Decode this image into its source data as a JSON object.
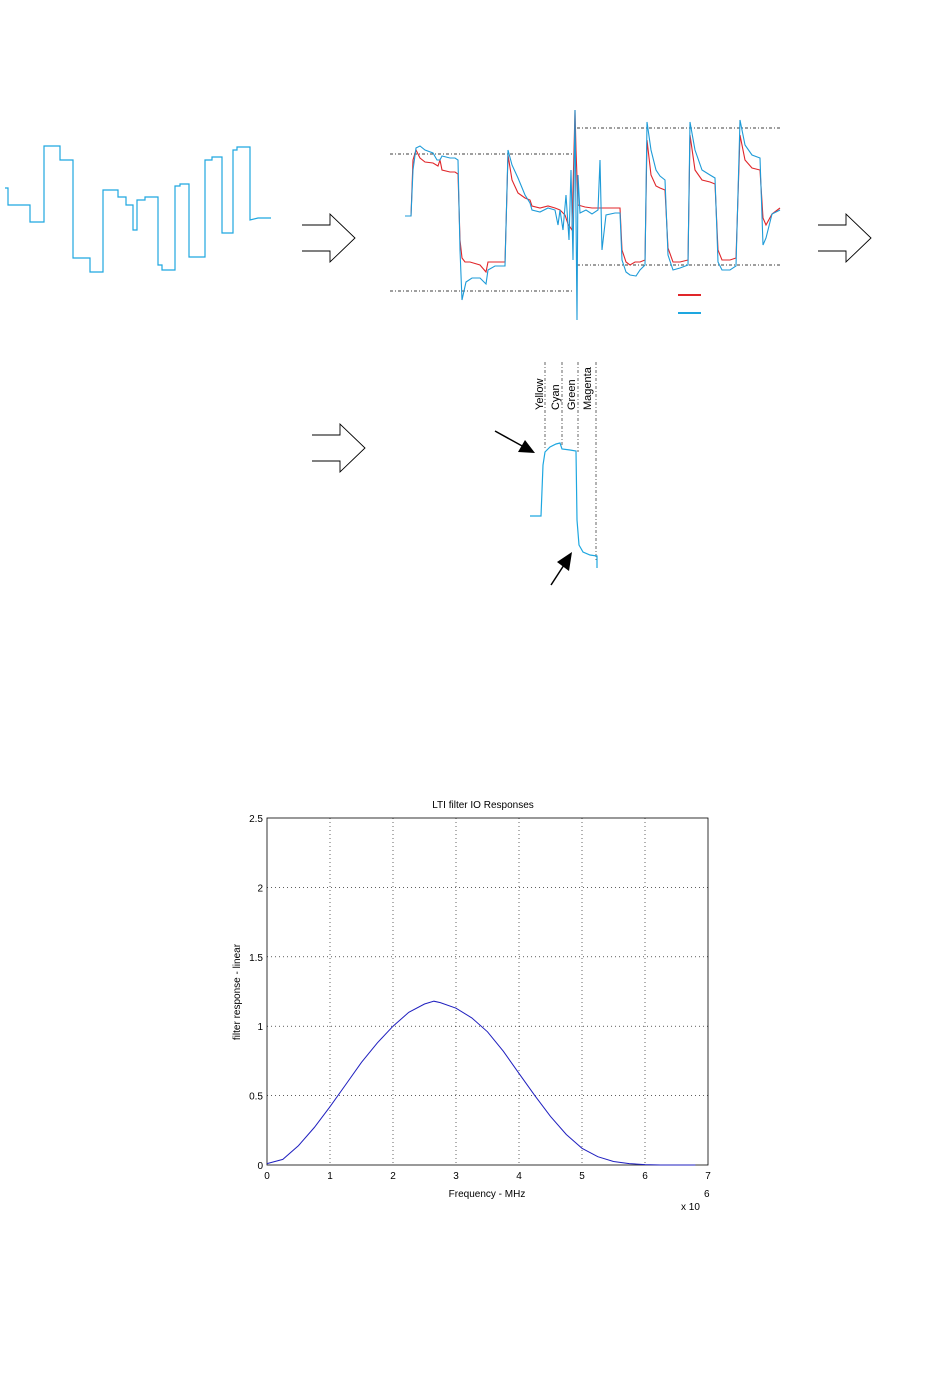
{
  "colors": {
    "cyan_trace": "#1ea7e0",
    "red_trace": "#e0262a",
    "blue_trace": "#3a78c8",
    "curve": "#1f1fbf"
  },
  "diagram": {
    "arrows": [
      "right-arrow",
      "right-arrow",
      "right-arrow"
    ],
    "bar_labels": [
      "Yellow",
      "Cyan",
      "Green",
      "Magenta"
    ],
    "pointer_arrows": [
      "pointer-arrow-top",
      "pointer-arrow-bottom"
    ]
  },
  "chart_data": {
    "type": "line",
    "title": "LTI filter IO Responses",
    "xlabel": "Frequency - MHz",
    "ylabel": "filter response - linear",
    "x_multiplier": "x 10",
    "x_exponent": "6",
    "xlim": [
      0,
      7
    ],
    "ylim": [
      0,
      2.5
    ],
    "xticks": [
      "0",
      "1",
      "2",
      "3",
      "4",
      "5",
      "6",
      "7"
    ],
    "yticks": [
      "0",
      "0.5",
      "1",
      "1.5",
      "2",
      "2.5"
    ],
    "grid": true,
    "series": [
      {
        "x": [
          0,
          0.25,
          0.5,
          0.75,
          1.0,
          1.25,
          1.5,
          1.75,
          2.0,
          2.25,
          2.5,
          2.65,
          2.75,
          3.0,
          3.25,
          3.5,
          3.75,
          4.0,
          4.25,
          4.5,
          4.75,
          5.0,
          5.25,
          5.5,
          5.75,
          6.0,
          6.25,
          6.5,
          6.8
        ],
        "y": [
          0.01,
          0.04,
          0.14,
          0.27,
          0.42,
          0.58,
          0.74,
          0.88,
          1.0,
          1.1,
          1.16,
          1.18,
          1.17,
          1.13,
          1.06,
          0.96,
          0.82,
          0.66,
          0.5,
          0.35,
          0.22,
          0.12,
          0.06,
          0.025,
          0.01,
          0.003,
          0.0,
          0.0,
          0.0
        ]
      }
    ]
  }
}
